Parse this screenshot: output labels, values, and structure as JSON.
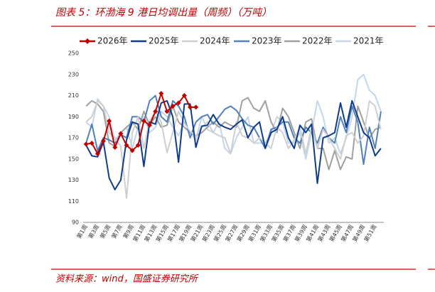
{
  "title": "图表 5：环渤海 9 港日均调出量（周频）（万吨）",
  "source": "资料来源：wind，国盛证券研究所",
  "chart_data": {
    "type": "line",
    "categories": [
      "第1周",
      null,
      "第3周",
      null,
      "第5周",
      null,
      "第7周",
      null,
      "第9周",
      null,
      "第11周",
      null,
      "第13周",
      null,
      "第15周",
      null,
      "第17周",
      null,
      "第19周",
      null,
      "第21周",
      null,
      "第23周",
      null,
      "第25周",
      null,
      "第27周",
      null,
      "第29周",
      null,
      "第31周",
      null,
      "第33周",
      null,
      "第35周",
      null,
      "第37周",
      null,
      "第39周",
      null,
      "第41周",
      null,
      "第43周",
      null,
      "第45周",
      null,
      "第47周",
      null,
      "第49周",
      null,
      "第51周",
      null
    ],
    "series": [
      {
        "name": "2026年",
        "color": "#c00000",
        "marker": "diamond",
        "values": [
          164,
          165,
          155,
          167,
          186,
          161,
          174,
          163,
          158,
          163,
          186,
          182,
          195,
          212,
          195,
          200,
          203,
          210,
          199,
          199,
          null,
          null,
          null,
          null,
          null,
          null,
          null,
          null,
          null,
          null,
          null,
          null,
          null,
          null,
          null,
          null,
          null,
          null,
          null,
          null,
          null,
          null,
          null,
          null,
          null,
          null,
          null,
          null,
          null,
          null,
          null,
          null
        ]
      },
      {
        "name": "2025年",
        "color": "#0f3b8c",
        "values": [
          163,
          153,
          152,
          166,
          132,
          121,
          130,
          168,
          185,
          183,
          143,
          185,
          183,
          203,
          205,
          190,
          147,
          202,
          202,
          161,
          181,
          182,
          192,
          183,
          180,
          178,
          183,
          187,
          170,
          180,
          185,
          160,
          175,
          178,
          190,
          170,
          160,
          182,
          175,
          183,
          127,
          170,
          172,
          175,
          203,
          180,
          205,
          190,
          175,
          170,
          153,
          160
        ]
      },
      {
        "name": "2024年",
        "color": "#cfcfcf",
        "values": [
          185,
          190,
          205,
          200,
          175,
          170,
          162,
          113,
          175,
          190,
          160,
          186,
          195,
          185,
          156,
          175,
          195,
          184,
          176,
          172,
          180,
          185,
          175,
          172,
          170,
          155,
          185,
          172,
          170,
          165,
          170,
          165,
          160,
          180,
          175,
          160,
          168,
          180,
          155,
          180,
          160,
          178,
          170,
          160,
          150,
          172,
          175,
          165,
          172,
          205,
          200,
          178
        ]
      },
      {
        "name": "2023年",
        "color": "#4f81bd",
        "values": [
          165,
          183,
          158,
          170,
          168,
          165,
          173,
          170,
          190,
          190,
          185,
          205,
          210,
          190,
          185,
          205,
          200,
          190,
          170,
          185,
          190,
          192,
          183,
          190,
          197,
          200,
          196,
          188,
          182,
          180,
          170,
          160,
          178,
          180,
          185,
          185,
          170,
          165,
          180,
          175,
          165,
          180,
          170,
          165,
          190,
          175,
          200,
          185,
          145,
          180,
          160,
          195
        ]
      },
      {
        "name": "2022年",
        "color": "#a0a0a0",
        "values": [
          200,
          205,
          202,
          195,
          165,
          162,
          175,
          180,
          185,
          178,
          195,
          182,
          190,
          180,
          182,
          200,
          185,
          180,
          175,
          172,
          175,
          180,
          185,
          180,
          185,
          182,
          180,
          205,
          208,
          198,
          195,
          205,
          185,
          175,
          198,
          190,
          175,
          160,
          185,
          188,
          160,
          160,
          140,
          158,
          140,
          152,
          150,
          200,
          185,
          170,
          178,
          180
        ]
      },
      {
        "name": "2021年",
        "color": "#c5d5ea",
        "values": [
          185,
          180,
          207,
          200,
          190,
          168,
          175,
          180,
          160,
          180,
          190,
          175,
          180,
          195,
          190,
          180,
          172,
          185,
          175,
          168,
          190,
          178,
          175,
          185,
          160,
          155,
          170,
          180,
          190,
          165,
          165,
          165,
          175,
          190,
          185,
          165,
          165,
          175,
          150,
          175,
          205,
          190,
          165,
          170,
          155,
          170,
          190,
          225,
          230,
          215,
          210,
          195
        ]
      }
    ],
    "ylim": [
      90,
      250
    ],
    "yticks": [
      90,
      110,
      130,
      150,
      170,
      190,
      210,
      230,
      250
    ],
    "grid": false
  }
}
